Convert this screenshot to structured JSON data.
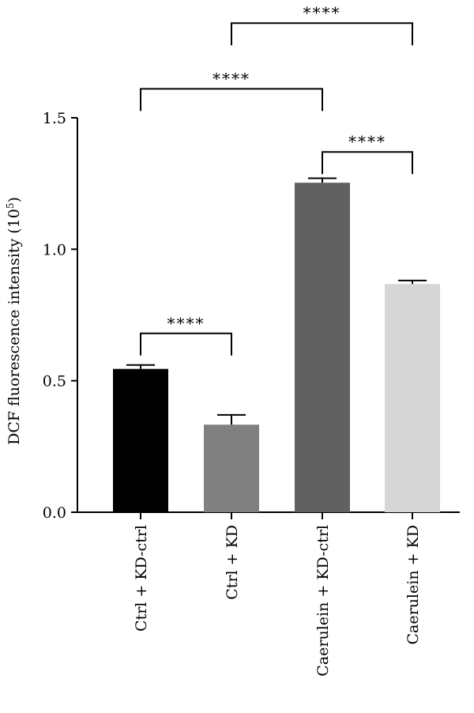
{
  "chart_data": {
    "type": "bar",
    "ylabel": "DCF fluorescence intensity (10",
    "ylabel_exponent": "5",
    "ylabel_close": ")",
    "ylim": [
      0,
      1.5
    ],
    "yticks": [
      0.0,
      0.5,
      1.0,
      1.5
    ],
    "ytick_labels": [
      "0.0",
      "0.5",
      "1.0",
      "1.5"
    ],
    "categories": [
      "Ctrl + KD-ctrl",
      "Ctrl + KD",
      "Caerulein + KD-ctrl",
      "Caerulein + KD"
    ],
    "values": [
      0.545,
      0.333,
      1.253,
      0.868
    ],
    "errors": [
      0.015,
      0.037,
      0.017,
      0.013
    ],
    "colors": [
      "#000000",
      "#808080",
      "#616161",
      "#d6d6d6"
    ],
    "significance": [
      {
        "from": 0,
        "to": 1,
        "label": "****",
        "level": 0.68
      },
      {
        "from": 2,
        "to": 3,
        "label": "****",
        "level": 1.37
      },
      {
        "from": 0,
        "to": 2,
        "label": "****",
        "level": 1.61
      },
      {
        "from": 1,
        "to": 3,
        "label": "****",
        "level": 1.86
      }
    ]
  }
}
